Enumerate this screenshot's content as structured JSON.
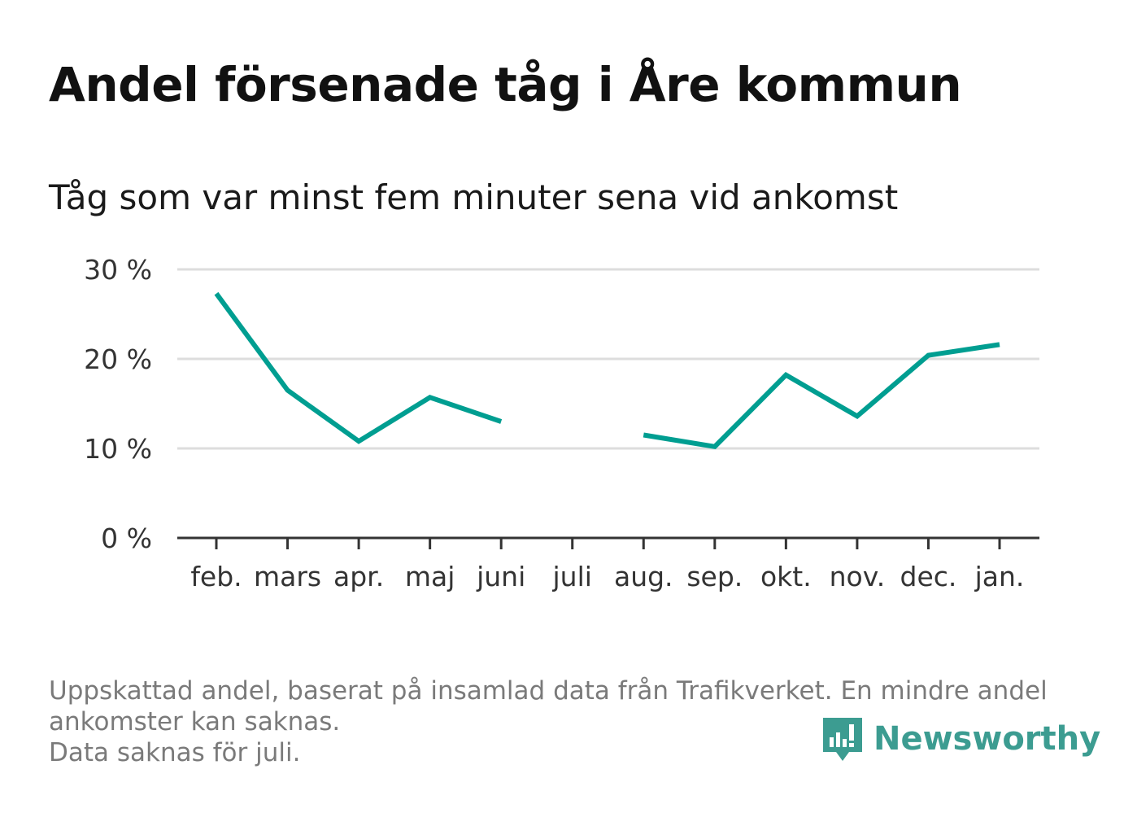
{
  "title": "Andel försenade tåg i Åre kommun",
  "subtitle": "Tåg som var minst fem minuter sena vid ankomst",
  "footnote": {
    "line1": "Uppskattad andel, baserat på insamlad data från Trafikverket. En mindre andel",
    "line2": "ankomster kan saknas.",
    "line3": "Data saknas för juli."
  },
  "brand": {
    "name": "Newsworthy",
    "icon": "newsworthy-logo-icon",
    "color": "#3c9c91"
  },
  "colors": {
    "line": "#009e91",
    "grid": "#dddddd",
    "axis": "#333333",
    "tick_text": "#333333"
  },
  "chart_data": {
    "type": "line",
    "title": "Andel försenade tåg i Åre kommun",
    "subtitle": "Tåg som var minst fem minuter sena vid ankomst",
    "xlabel": "",
    "ylabel": "",
    "categories": [
      "feb.",
      "mars",
      "apr.",
      "maj",
      "juni",
      "juli",
      "aug.",
      "sep.",
      "okt.",
      "nov.",
      "dec.",
      "jan."
    ],
    "series": [
      {
        "values": [
          27.3,
          16.5,
          10.8,
          15.7,
          13.0,
          null,
          11.5,
          10.2,
          18.2,
          13.6,
          20.4,
          21.6
        ]
      }
    ],
    "ylim": [
      0,
      30
    ],
    "yticks": [
      0,
      10,
      20,
      30
    ],
    "ytick_labels": [
      "0 %",
      "10 %",
      "20 %",
      "30 %"
    ],
    "grid": true,
    "legend": "none"
  }
}
